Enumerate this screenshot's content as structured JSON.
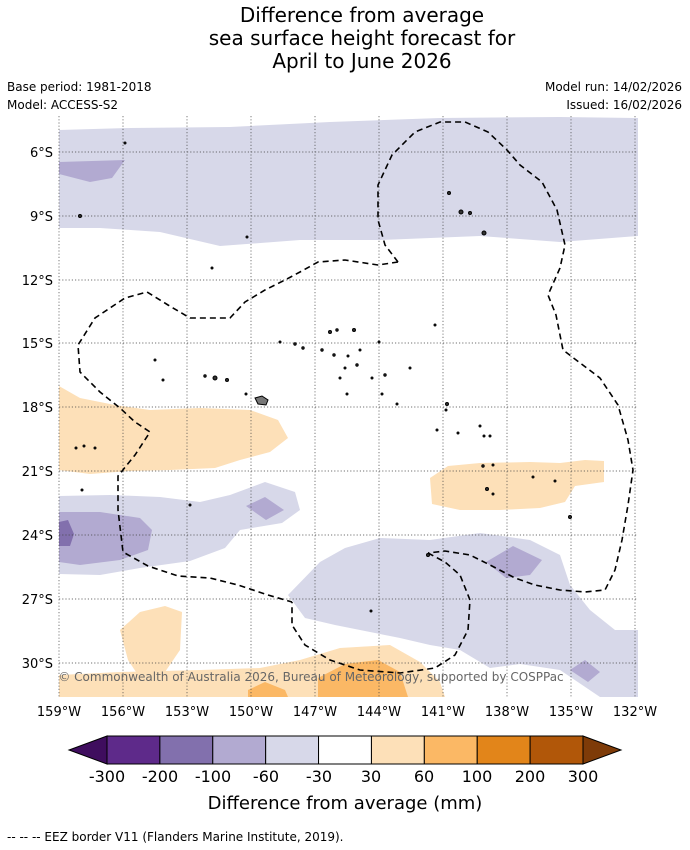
{
  "title": {
    "line1": "Difference from average",
    "line2": "sea surface height forecast for",
    "line3": "April to June 2026"
  },
  "meta": {
    "base_period": "Base period: 1981-2018",
    "model": "Model: ACCESS-S2",
    "model_run": "Model run: 14/02/2026",
    "issued": "Issued: 16/02/2026"
  },
  "map": {
    "lat_ticks": [
      "6°S",
      "9°S",
      "12°S",
      "15°S",
      "18°S",
      "21°S",
      "24°S",
      "27°S",
      "30°S"
    ],
    "lon_ticks": [
      "159°W",
      "156°W",
      "153°W",
      "150°W",
      "147°W",
      "144°W",
      "141°W",
      "138°W",
      "135°W",
      "132°W"
    ],
    "copyright": "© Commonwealth of Australia 2026, Bureau of Meteorology, supported by COSPPac"
  },
  "legend": {
    "title": "Difference from average (mm)",
    "labels": [
      "-300",
      "-200",
      "-100",
      "-60",
      "-30",
      "30",
      "60",
      "100",
      "200",
      "300"
    ],
    "colors": [
      "#3f0d5e",
      "#5e2a8a",
      "#8270ad",
      "#b2aad1",
      "#d7d8e9",
      "#ffffff",
      "#fde0b8",
      "#fbb865",
      "#e2851a",
      "#b15709",
      "#7e3b08"
    ]
  },
  "footnote": "--  --  -- EEZ border V11 (Flanders Marine Institute, 2019)."
}
